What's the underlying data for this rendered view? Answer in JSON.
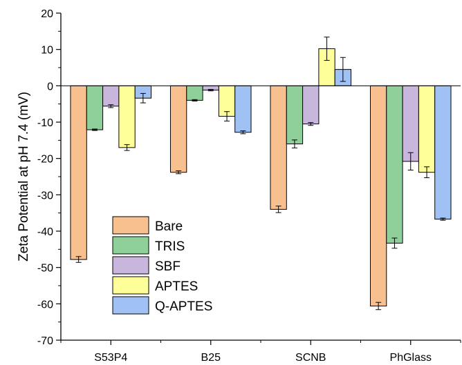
{
  "chart_data": {
    "type": "bar",
    "ylabel": "Zeta Potential at pH 7.4 (mV)",
    "xlabel": "",
    "ylim": [
      -70,
      20
    ],
    "yticks": [
      20,
      10,
      0,
      -10,
      -20,
      -30,
      -40,
      -50,
      -60,
      -70
    ],
    "categories": [
      "S53P4",
      "B25",
      "SCNB",
      "PhGlass"
    ],
    "legend_position": "lower-left",
    "series": [
      {
        "name": "Bare",
        "color": "#f9c08f",
        "values": [
          -47.8,
          -23.8,
          -34.0,
          -60.6
        ],
        "errors": [
          0.8,
          0.4,
          0.9,
          1.0
        ]
      },
      {
        "name": "TRIS",
        "color": "#8fd09a",
        "values": [
          -12.1,
          -4.0,
          -16.0,
          -43.3
        ],
        "errors": [
          0.2,
          0.2,
          1.1,
          1.4
        ]
      },
      {
        "name": "SBF",
        "color": "#c8b6dc",
        "values": [
          -5.6,
          -1.2,
          -10.5,
          -20.8
        ],
        "errors": [
          0.4,
          0.2,
          0.4,
          2.4
        ]
      },
      {
        "name": "APTES",
        "color": "#ffff99",
        "values": [
          -17.0,
          -8.4,
          10.2,
          -23.8
        ],
        "errors": [
          0.8,
          1.3,
          3.2,
          1.5
        ]
      },
      {
        "name": "Q-APTES",
        "color": "#9fc1f4",
        "values": [
          -3.4,
          -12.8,
          4.5,
          -36.7
        ],
        "errors": [
          1.3,
          0.4,
          3.3,
          0.3
        ]
      }
    ]
  }
}
